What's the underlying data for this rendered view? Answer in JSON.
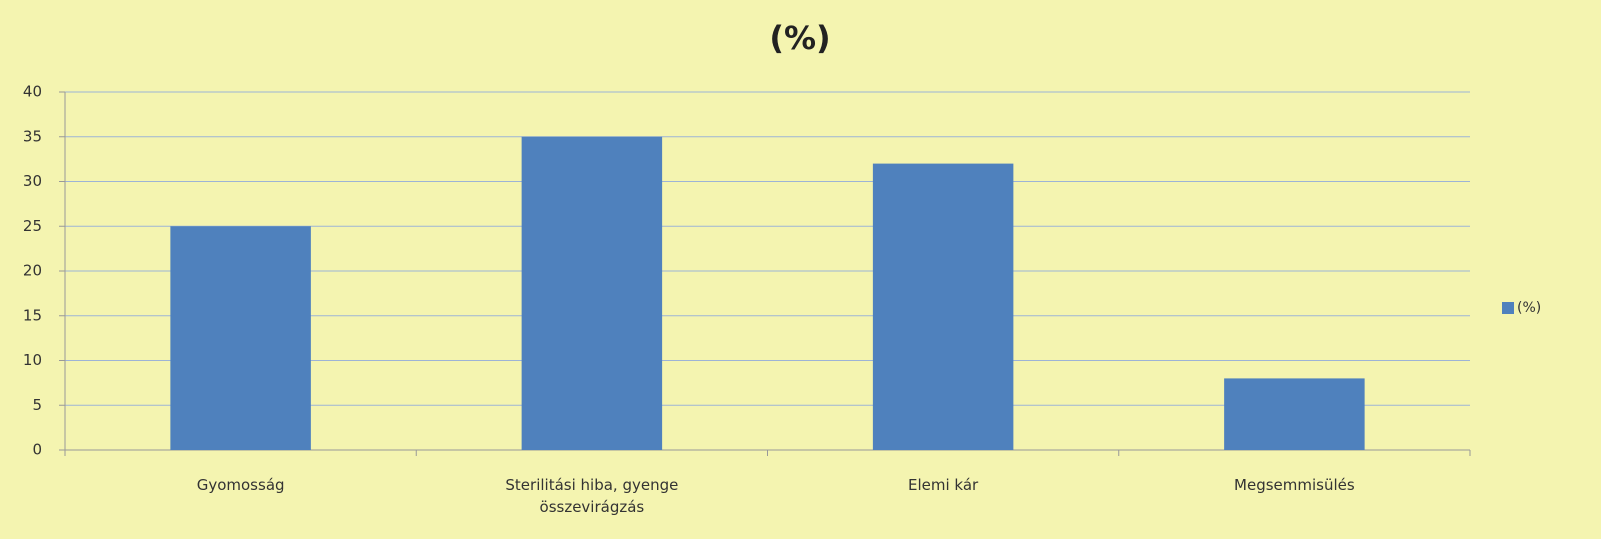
{
  "chart_data": {
    "type": "bar",
    "title": "(%)",
    "categories": [
      "Gyomosság",
      "Sterilitási hiba, gyenge összevirágzás",
      "Elemi kár",
      "Megsemmisülés"
    ],
    "series": [
      {
        "name": "(%)",
        "color": "#4f81bd",
        "values": [
          25,
          35,
          32,
          8
        ]
      }
    ],
    "ylim": [
      0,
      40
    ],
    "yticks": [
      0,
      5,
      10,
      15,
      20,
      25,
      30,
      35,
      40
    ],
    "grid": true,
    "legend": "right"
  }
}
